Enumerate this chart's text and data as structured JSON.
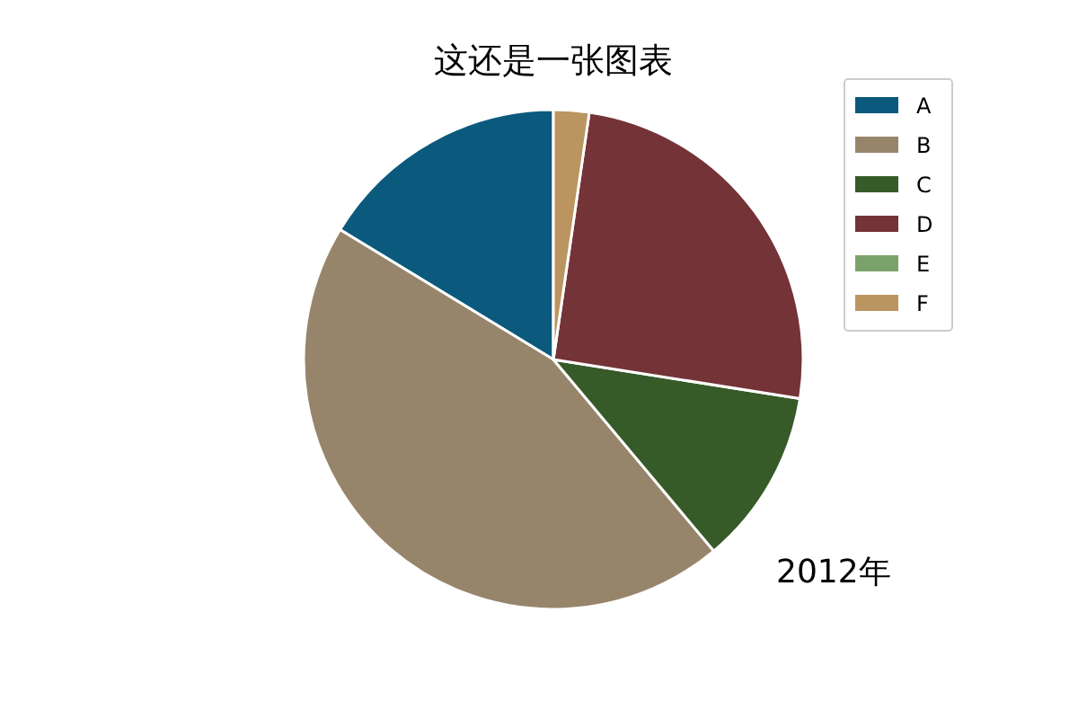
{
  "chart_data": {
    "type": "pie",
    "title": "这还是一张图表",
    "categories": [
      "A",
      "B",
      "C",
      "D",
      "E",
      "F"
    ],
    "values": [
      16.3,
      44.8,
      11.4,
      25.2,
      0,
      2.3
    ],
    "colors": [
      "#0b5a7d",
      "#97856b",
      "#375a29",
      "#743337",
      "#7ca26b",
      "#bb955f"
    ],
    "legend": "top right",
    "annotations": [
      "2012年"
    ]
  }
}
